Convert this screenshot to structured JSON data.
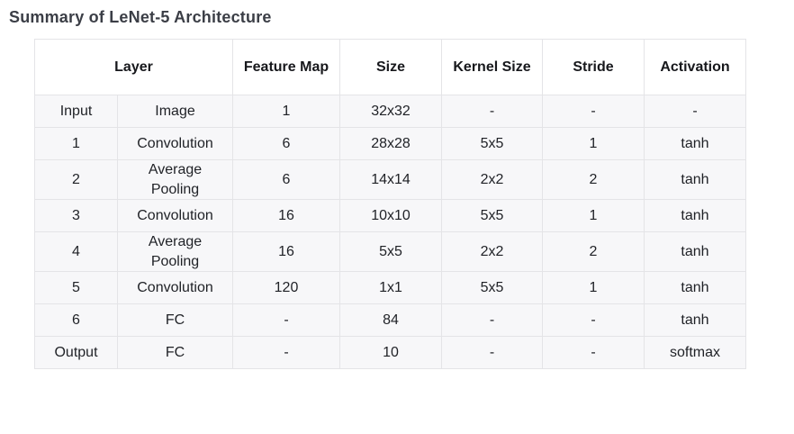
{
  "page": {
    "title": "Summary of LeNet-5 Architecture"
  },
  "colors": {
    "title_text": "#3b3e46",
    "header_bg": "#ffffff",
    "row_bg": "#f7f7f9",
    "border": "#e4e4e7",
    "body_text": "#1f2126"
  },
  "table": {
    "headers": [
      {
        "label": "Layer",
        "colspan": 2
      },
      {
        "label": "Feature Map"
      },
      {
        "label": "Size"
      },
      {
        "label": "Kernel Size"
      },
      {
        "label": "Stride"
      },
      {
        "label": "Activation"
      }
    ],
    "rows": [
      [
        "Input",
        "Image",
        "1",
        "32x32",
        "-",
        "-",
        "-"
      ],
      [
        "1",
        "Convolution",
        "6",
        "28x28",
        "5x5",
        "1",
        "tanh"
      ],
      [
        "2",
        "Average Pooling",
        "6",
        "14x14",
        "2x2",
        "2",
        "tanh"
      ],
      [
        "3",
        "Convolution",
        "16",
        "10x10",
        "5x5",
        "1",
        "tanh"
      ],
      [
        "4",
        "Average Pooling",
        "16",
        "5x5",
        "2x2",
        "2",
        "tanh"
      ],
      [
        "5",
        "Convolution",
        "120",
        "1x1",
        "5x5",
        "1",
        "tanh"
      ],
      [
        "6",
        "FC",
        "-",
        "84",
        "-",
        "-",
        "tanh"
      ],
      [
        "Output",
        "FC",
        "-",
        "10",
        "-",
        "-",
        "softmax"
      ]
    ]
  }
}
